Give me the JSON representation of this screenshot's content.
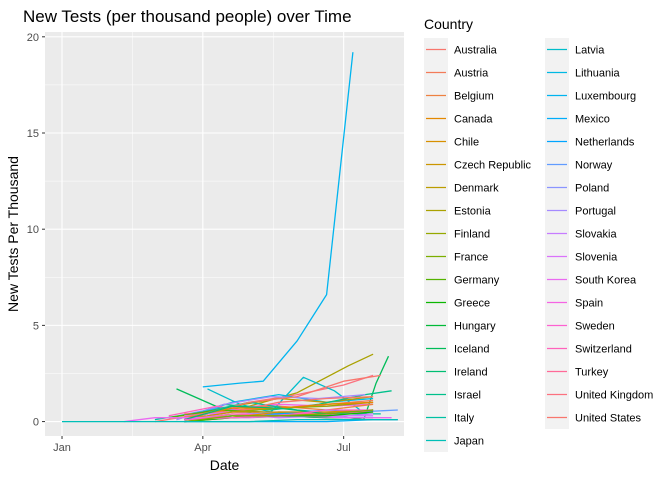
{
  "chart_data": {
    "type": "line",
    "title": "New Tests (per thousand people) over Time",
    "xlabel": "Date",
    "ylabel": "New Tests Per Thousand",
    "x_ticks": [
      {
        "label": "Jan",
        "date": "2020-01-01"
      },
      {
        "label": "Apr",
        "date": "2020-04-01"
      },
      {
        "label": "Jul",
        "date": "2020-07-01"
      }
    ],
    "xlim": [
      "2019-12-21",
      "2020-08-09"
    ],
    "y_ticks": [
      0,
      5,
      10,
      15,
      20
    ],
    "ylim": [
      -0.75,
      20.25
    ],
    "grid": true,
    "legend": {
      "title": "Country",
      "placement": "right",
      "columns": 2,
      "entries": [
        {
          "name": "Australia",
          "color": "#F8766D"
        },
        {
          "name": "Austria",
          "color": "#F37B59"
        },
        {
          "name": "Belgium",
          "color": "#ED8141"
        },
        {
          "name": "Canada",
          "color": "#E38900"
        },
        {
          "name": "Chile",
          "color": "#D89000"
        },
        {
          "name": "Czech Republic",
          "color": "#CB9600"
        },
        {
          "name": "Denmark",
          "color": "#BB9C00"
        },
        {
          "name": "Estonia",
          "color": "#AAA100"
        },
        {
          "name": "Finland",
          "color": "#96A900"
        },
        {
          "name": "France",
          "color": "#7CAE00"
        },
        {
          "name": "Germany",
          "color": "#55B300"
        },
        {
          "name": "Greece",
          "color": "#0CB702"
        },
        {
          "name": "Hungary",
          "color": "#00BA38"
        },
        {
          "name": "Iceland",
          "color": "#00BC59"
        },
        {
          "name": "Ireland",
          "color": "#00BE73"
        },
        {
          "name": "Israel",
          "color": "#00C08B"
        },
        {
          "name": "Italy",
          "color": "#00C0A3"
        },
        {
          "name": "Japan",
          "color": "#00BFB7"
        },
        {
          "name": "Latvia",
          "color": "#00BDCA"
        },
        {
          "name": "Lithuania",
          "color": "#00B9E3"
        },
        {
          "name": "Luxembourg",
          "color": "#00B4EF"
        },
        {
          "name": "Mexico",
          "color": "#00ADFA"
        },
        {
          "name": "Netherlands",
          "color": "#00A5FF"
        },
        {
          "name": "Norway",
          "color": "#619CFF"
        },
        {
          "name": "Poland",
          "color": "#8A94FF"
        },
        {
          "name": "Portugal",
          "color": "#A58AFF"
        },
        {
          "name": "Slovakia",
          "color": "#C77CFF"
        },
        {
          "name": "Slovenia",
          "color": "#DA72FB"
        },
        {
          "name": "South Korea",
          "color": "#EA6AF1"
        },
        {
          "name": "Spain",
          "color": "#F564E3"
        },
        {
          "name": "Sweden",
          "color": "#FD61D1"
        },
        {
          "name": "Switzerland",
          "color": "#FF62BC"
        },
        {
          "name": "Turkey",
          "color": "#FF6A98"
        },
        {
          "name": "United Kingdom",
          "color": "#FC717F"
        },
        {
          "name": "United States",
          "color": "#F8766D"
        }
      ]
    },
    "series": [
      {
        "name": "Luxembourg",
        "x": [
          "2020-04-01",
          "2020-04-25",
          "2020-05-10",
          "2020-06-01",
          "2020-06-20",
          "2020-07-07"
        ],
        "y": [
          1.8,
          2.0,
          2.1,
          4.2,
          6.6,
          19.2
        ]
      },
      {
        "name": "Estonia",
        "x": [
          "2020-04-01",
          "2020-05-01",
          "2020-06-01",
          "2020-07-04",
          "2020-07-20"
        ],
        "y": [
          0.4,
          0.8,
          1.5,
          2.9,
          3.5
        ]
      },
      {
        "name": "Iceland",
        "x": [
          "2020-03-15",
          "2020-04-15",
          "2020-05-15",
          "2020-06-15",
          "2020-07-14",
          "2020-07-22",
          "2020-07-30"
        ],
        "y": [
          1.7,
          0.6,
          0.3,
          0.4,
          0.1,
          2.0,
          3.4
        ]
      },
      {
        "name": "United Kingdom",
        "x": [
          "2020-04-01",
          "2020-05-01",
          "2020-06-01",
          "2020-07-01",
          "2020-07-20"
        ],
        "y": [
          0.2,
          1.0,
          1.4,
          1.9,
          2.4
        ]
      },
      {
        "name": "Latvia",
        "x": [
          "2020-04-04",
          "2020-04-25",
          "2020-05-15",
          "2020-06-05",
          "2020-06-25",
          "2020-07-15"
        ],
        "y": [
          1.7,
          0.9,
          0.5,
          2.3,
          1.6,
          0.4
        ]
      },
      {
        "name": "Lithuania",
        "x": [
          "2020-03-20",
          "2020-04-20",
          "2020-05-20",
          "2020-06-20",
          "2020-07-20"
        ],
        "y": [
          0.2,
          1.0,
          1.4,
          1.0,
          1.2
        ]
      },
      {
        "name": "Denmark",
        "x": [
          "2020-03-20",
          "2020-04-20",
          "2020-05-20",
          "2020-06-20",
          "2020-07-20"
        ],
        "y": [
          0.2,
          0.8,
          1.2,
          1.0,
          1.3
        ]
      },
      {
        "name": "Israel",
        "x": [
          "2020-03-15",
          "2020-04-15",
          "2020-05-15",
          "2020-06-15",
          "2020-07-15",
          "2020-08-01"
        ],
        "y": [
          0.1,
          0.9,
          0.6,
          0.9,
          1.4,
          1.6
        ]
      },
      {
        "name": "Austria",
        "x": [
          "2020-03-20",
          "2020-04-20",
          "2020-05-20",
          "2020-06-20",
          "2020-07-20"
        ],
        "y": [
          0.2,
          0.6,
          0.7,
          0.9,
          1.1
        ]
      },
      {
        "name": "Portugal",
        "x": [
          "2020-03-15",
          "2020-04-15",
          "2020-05-15",
          "2020-06-15",
          "2020-07-15"
        ],
        "y": [
          0.1,
          0.9,
          1.3,
          1.2,
          1.4
        ]
      },
      {
        "name": "Spain",
        "x": [
          "2020-03-20",
          "2020-04-20",
          "2020-05-20",
          "2020-06-20",
          "2020-07-20"
        ],
        "y": [
          0.1,
          0.7,
          0.9,
          0.8,
          0.9
        ]
      },
      {
        "name": "Norway",
        "x": [
          "2020-03-10",
          "2020-04-10",
          "2020-05-10",
          "2020-06-10",
          "2020-07-10",
          "2020-08-05"
        ],
        "y": [
          0.2,
          0.7,
          0.5,
          0.3,
          0.5,
          0.6
        ]
      },
      {
        "name": "Belgium",
        "x": [
          "2020-03-20",
          "2020-04-20",
          "2020-05-20",
          "2020-06-20",
          "2020-07-20"
        ],
        "y": [
          0.1,
          0.7,
          0.8,
          0.6,
          0.9
        ]
      },
      {
        "name": "Switzerland",
        "x": [
          "2020-03-10",
          "2020-04-10",
          "2020-05-10",
          "2020-06-10",
          "2020-07-10"
        ],
        "y": [
          0.3,
          0.8,
          0.4,
          0.3,
          0.5
        ]
      },
      {
        "name": "Italy",
        "x": [
          "2020-03-01",
          "2020-04-01",
          "2020-05-01",
          "2020-06-01",
          "2020-07-01",
          "2020-07-25"
        ],
        "y": [
          0.1,
          0.5,
          1.0,
          0.6,
          0.4,
          0.4
        ]
      },
      {
        "name": "Australia",
        "x": [
          "2020-03-20",
          "2020-04-20",
          "2020-05-20",
          "2020-06-20",
          "2020-07-20"
        ],
        "y": [
          0.4,
          0.5,
          1.0,
          1.2,
          1.3
        ]
      },
      {
        "name": "Germany",
        "x": [
          "2020-03-10",
          "2020-04-10",
          "2020-05-10",
          "2020-06-10",
          "2020-07-10"
        ],
        "y": [
          0.2,
          0.6,
          0.5,
          0.4,
          0.6
        ]
      },
      {
        "name": "Finland",
        "x": [
          "2020-03-20",
          "2020-04-20",
          "2020-05-20",
          "2020-06-20",
          "2020-07-20"
        ],
        "y": [
          0.1,
          0.5,
          0.7,
          0.8,
          1.0
        ]
      },
      {
        "name": "Slovenia",
        "x": [
          "2020-03-20",
          "2020-04-20",
          "2020-05-20",
          "2020-06-20",
          "2020-07-20"
        ],
        "y": [
          0.3,
          0.5,
          0.3,
          0.2,
          0.4
        ]
      },
      {
        "name": "Czech Republic",
        "x": [
          "2020-03-20",
          "2020-04-20",
          "2020-05-20",
          "2020-06-20",
          "2020-07-20"
        ],
        "y": [
          0.1,
          0.5,
          0.5,
          0.4,
          0.6
        ]
      },
      {
        "name": "Canada",
        "x": [
          "2020-03-20",
          "2020-04-20",
          "2020-05-20",
          "2020-06-20",
          "2020-07-20"
        ],
        "y": [
          0.2,
          0.7,
          0.7,
          0.9,
          1.0
        ]
      },
      {
        "name": "Netherlands",
        "x": [
          "2020-03-20",
          "2020-04-20",
          "2020-05-20",
          "2020-06-20",
          "2020-07-20"
        ],
        "y": [
          0.1,
          0.3,
          0.4,
          0.6,
          0.5
        ]
      },
      {
        "name": "Hungary",
        "x": [
          "2020-03-20",
          "2020-04-20",
          "2020-05-20",
          "2020-06-20",
          "2020-07-20"
        ],
        "y": [
          0.0,
          0.3,
          0.3,
          0.2,
          0.2
        ]
      },
      {
        "name": "United States",
        "x": [
          "2020-03-01",
          "2020-04-01",
          "2020-05-01",
          "2020-06-01",
          "2020-07-01",
          "2020-07-25"
        ],
        "y": [
          0.0,
          0.4,
          1.0,
          1.3,
          2.1,
          2.4
        ]
      },
      {
        "name": "Poland",
        "x": [
          "2020-03-20",
          "2020-04-20",
          "2020-05-20",
          "2020-06-20",
          "2020-07-20"
        ],
        "y": [
          0.1,
          0.3,
          0.5,
          0.5,
          0.6
        ]
      },
      {
        "name": "Slovakia",
        "x": [
          "2020-03-20",
          "2020-04-20",
          "2020-05-20",
          "2020-06-20",
          "2020-07-20"
        ],
        "y": [
          0.1,
          0.4,
          0.2,
          0.3,
          0.3
        ]
      },
      {
        "name": "South Korea",
        "x": [
          "2020-02-10",
          "2020-03-01",
          "2020-04-01",
          "2020-05-01",
          "2020-06-01",
          "2020-07-01",
          "2020-08-01"
        ],
        "y": [
          0.0,
          0.2,
          0.2,
          0.2,
          0.3,
          0.2,
          0.2
        ]
      },
      {
        "name": "Turkey",
        "x": [
          "2020-03-20",
          "2020-04-20",
          "2020-05-20",
          "2020-06-20",
          "2020-07-20"
        ],
        "y": [
          0.0,
          0.4,
          0.3,
          0.5,
          0.5
        ]
      },
      {
        "name": "Chile",
        "x": [
          "2020-03-20",
          "2020-04-20",
          "2020-05-20",
          "2020-06-20",
          "2020-07-20"
        ],
        "y": [
          0.0,
          0.2,
          0.5,
          0.5,
          0.6
        ]
      },
      {
        "name": "Greece",
        "x": [
          "2020-03-20",
          "2020-04-20",
          "2020-05-20",
          "2020-06-20",
          "2020-07-20"
        ],
        "y": [
          0.0,
          0.2,
          0.3,
          0.3,
          0.5
        ]
      },
      {
        "name": "Ireland",
        "x": [
          "2020-03-20",
          "2020-04-20",
          "2020-05-20",
          "2020-06-20",
          "2020-07-20"
        ],
        "y": [
          0.1,
          0.8,
          0.7,
          0.4,
          0.6
        ]
      },
      {
        "name": "Sweden",
        "x": [
          "2020-03-20",
          "2020-04-20",
          "2020-05-20",
          "2020-06-20",
          "2020-07-20"
        ],
        "y": [
          0.1,
          0.2,
          0.3,
          0.6,
          0.6
        ]
      },
      {
        "name": "France",
        "x": [
          "2020-03-20",
          "2020-04-20",
          "2020-05-20",
          "2020-06-20",
          "2020-07-20"
        ],
        "y": [
          0.0,
          0.3,
          0.3,
          0.4,
          0.6
        ]
      },
      {
        "name": "Mexico",
        "x": [
          "2020-03-20",
          "2020-04-20",
          "2020-05-20",
          "2020-06-20",
          "2020-07-20",
          "2020-08-05"
        ],
        "y": [
          0.0,
          0.0,
          0.0,
          0.0,
          0.1,
          0.1
        ]
      },
      {
        "name": "Japan",
        "x": [
          "2020-01-01",
          "2020-02-01",
          "2020-03-01",
          "2020-04-01",
          "2020-05-01",
          "2020-06-01",
          "2020-07-01",
          "2020-08-05"
        ],
        "y": [
          0.0,
          0.0,
          0.0,
          0.0,
          0.0,
          0.1,
          0.1,
          0.1
        ]
      }
    ]
  }
}
